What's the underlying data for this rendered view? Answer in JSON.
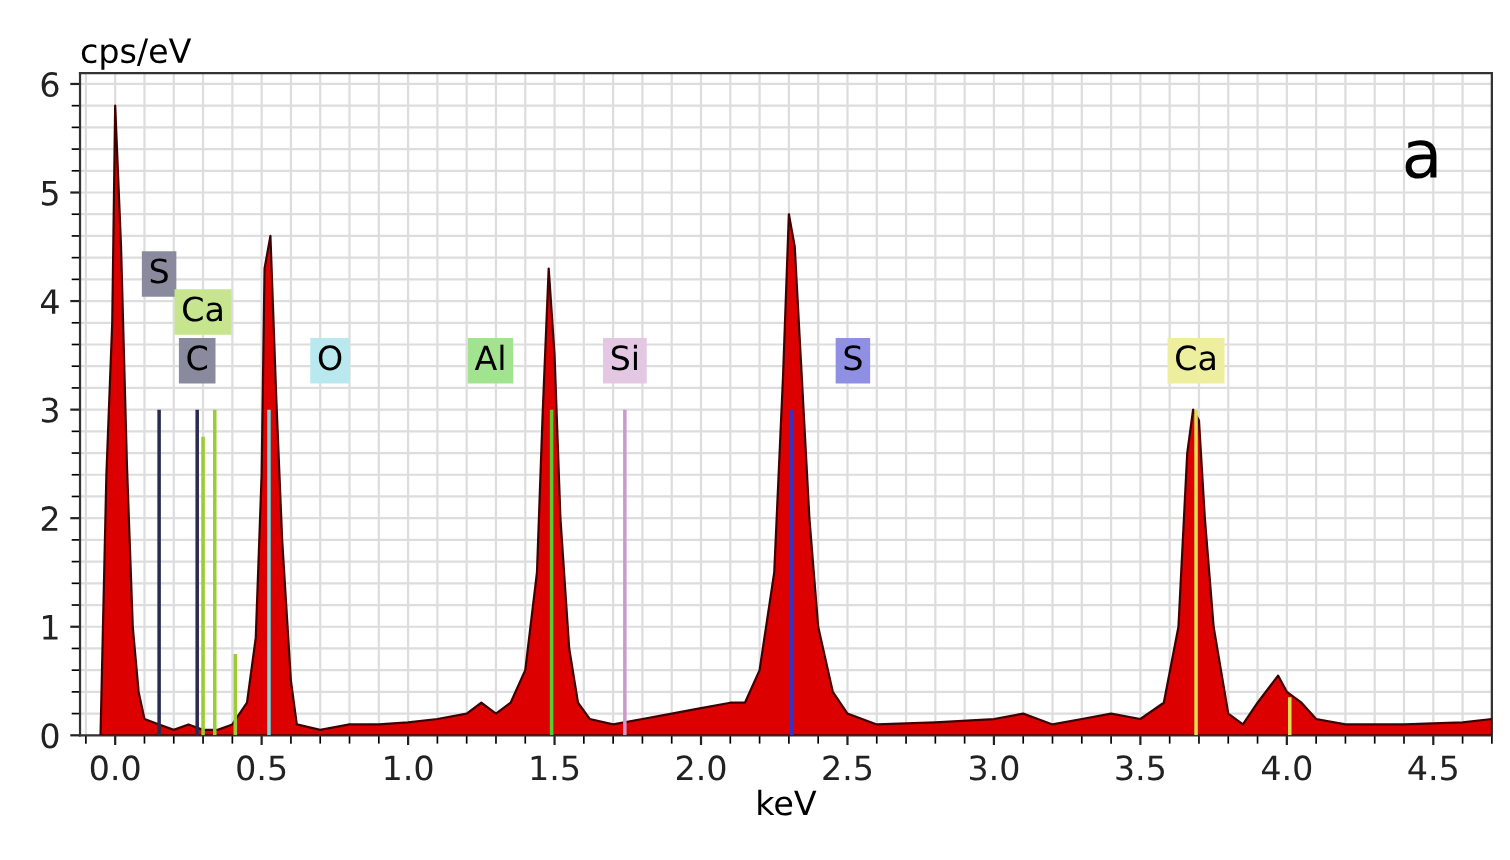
{
  "chart_data": {
    "type": "area",
    "xlabel": "keV",
    "ylabel": "cps/eV",
    "xlim": [
      -0.12,
      4.7
    ],
    "ylim": [
      0,
      6.1
    ],
    "xticks": [
      {
        "value": 0,
        "label": "0.0"
      },
      0.5,
      {
        "value": 1,
        "label": "1.0"
      },
      1.5,
      {
        "value": 2,
        "label": "2.0"
      },
      2.5,
      {
        "value": 3,
        "label": "3.0"
      },
      3.5,
      {
        "value": 4,
        "label": "4.0"
      },
      4.5
    ],
    "yticks": [
      0,
      1,
      2,
      3,
      4,
      5,
      6
    ],
    "grid": true,
    "legend": false,
    "series": [
      {
        "color": "#dd0000",
        "x": [
          -0.05,
          -0.03,
          -0.01,
          0.0,
          0.02,
          0.04,
          0.06,
          0.08,
          0.1,
          0.15,
          0.2,
          0.25,
          0.3,
          0.35,
          0.4,
          0.45,
          0.48,
          0.5,
          0.51,
          0.53,
          0.55,
          0.57,
          0.6,
          0.62,
          0.7,
          0.8,
          0.9,
          1.0,
          1.1,
          1.2,
          1.25,
          1.3,
          1.35,
          1.4,
          1.44,
          1.46,
          1.48,
          1.5,
          1.52,
          1.55,
          1.58,
          1.62,
          1.7,
          1.8,
          1.9,
          2.0,
          2.1,
          2.15,
          2.2,
          2.25,
          2.28,
          2.3,
          2.32,
          2.34,
          2.37,
          2.4,
          2.45,
          2.5,
          2.55,
          2.6,
          2.8,
          3.0,
          3.1,
          3.2,
          3.3,
          3.4,
          3.5,
          3.58,
          3.63,
          3.66,
          3.68,
          3.7,
          3.72,
          3.75,
          3.8,
          3.85,
          3.9,
          3.97,
          4.0,
          4.05,
          4.1,
          4.2,
          4.4,
          4.6,
          4.7
        ],
        "values": [
          0,
          2.4,
          3.8,
          5.8,
          4.5,
          2.5,
          1.0,
          0.4,
          0.15,
          0.1,
          0.05,
          0.1,
          0.05,
          0.05,
          0.1,
          0.3,
          0.9,
          2.4,
          4.3,
          4.6,
          3.1,
          1.8,
          0.5,
          0.1,
          0.05,
          0.1,
          0.1,
          0.12,
          0.15,
          0.2,
          0.3,
          0.2,
          0.3,
          0.6,
          1.5,
          3.0,
          4.3,
          3.5,
          2.0,
          0.8,
          0.3,
          0.15,
          0.1,
          0.15,
          0.2,
          0.25,
          0.3,
          0.3,
          0.6,
          1.5,
          3.3,
          4.8,
          4.5,
          3.5,
          2.0,
          1.0,
          0.4,
          0.2,
          0.15,
          0.1,
          0.12,
          0.15,
          0.2,
          0.1,
          0.15,
          0.2,
          0.15,
          0.3,
          1.0,
          2.6,
          3.0,
          2.9,
          2.0,
          1.0,
          0.2,
          0.1,
          0.3,
          0.55,
          0.4,
          0.3,
          0.15,
          0.1,
          0.1,
          0.12,
          0.15
        ]
      },
      {
        "type": "bar",
        "x": [
          0.15,
          0.28,
          0.3,
          0.34,
          0.41,
          0.525,
          1.49,
          1.74,
          2.31,
          3.69,
          4.01
        ],
        "values": [
          3.0,
          3.0,
          2.75,
          3.0,
          0.75,
          3.0,
          3.0,
          3.0,
          3.0,
          3.0,
          0.35
        ],
        "colors": [
          "#2a2a50",
          "#2a2a50",
          "#9acd32",
          "#9acd32",
          "#9acd32",
          "#7fd7e0",
          "#55cc33",
          "#cc99cc",
          "#3333cc",
          "#e0e050",
          "#e0e050"
        ]
      }
    ],
    "annotations": [
      {
        "text": "S",
        "x": 0.15,
        "y": 4.25
      },
      {
        "text": "Ca",
        "x": 0.3,
        "y": 3.9
      },
      {
        "text": "C",
        "x": 0.28,
        "y": 3.45
      },
      {
        "text": "O",
        "x": 0.525,
        "y": 3.45
      },
      {
        "text": "Al",
        "x": 1.49,
        "y": 3.45
      },
      {
        "text": "Si",
        "x": 1.74,
        "y": 3.45
      },
      {
        "text": "S",
        "x": 2.31,
        "y": 3.45
      },
      {
        "text": "Ca",
        "x": 3.69,
        "y": 3.45
      },
      "a"
    ]
  }
}
